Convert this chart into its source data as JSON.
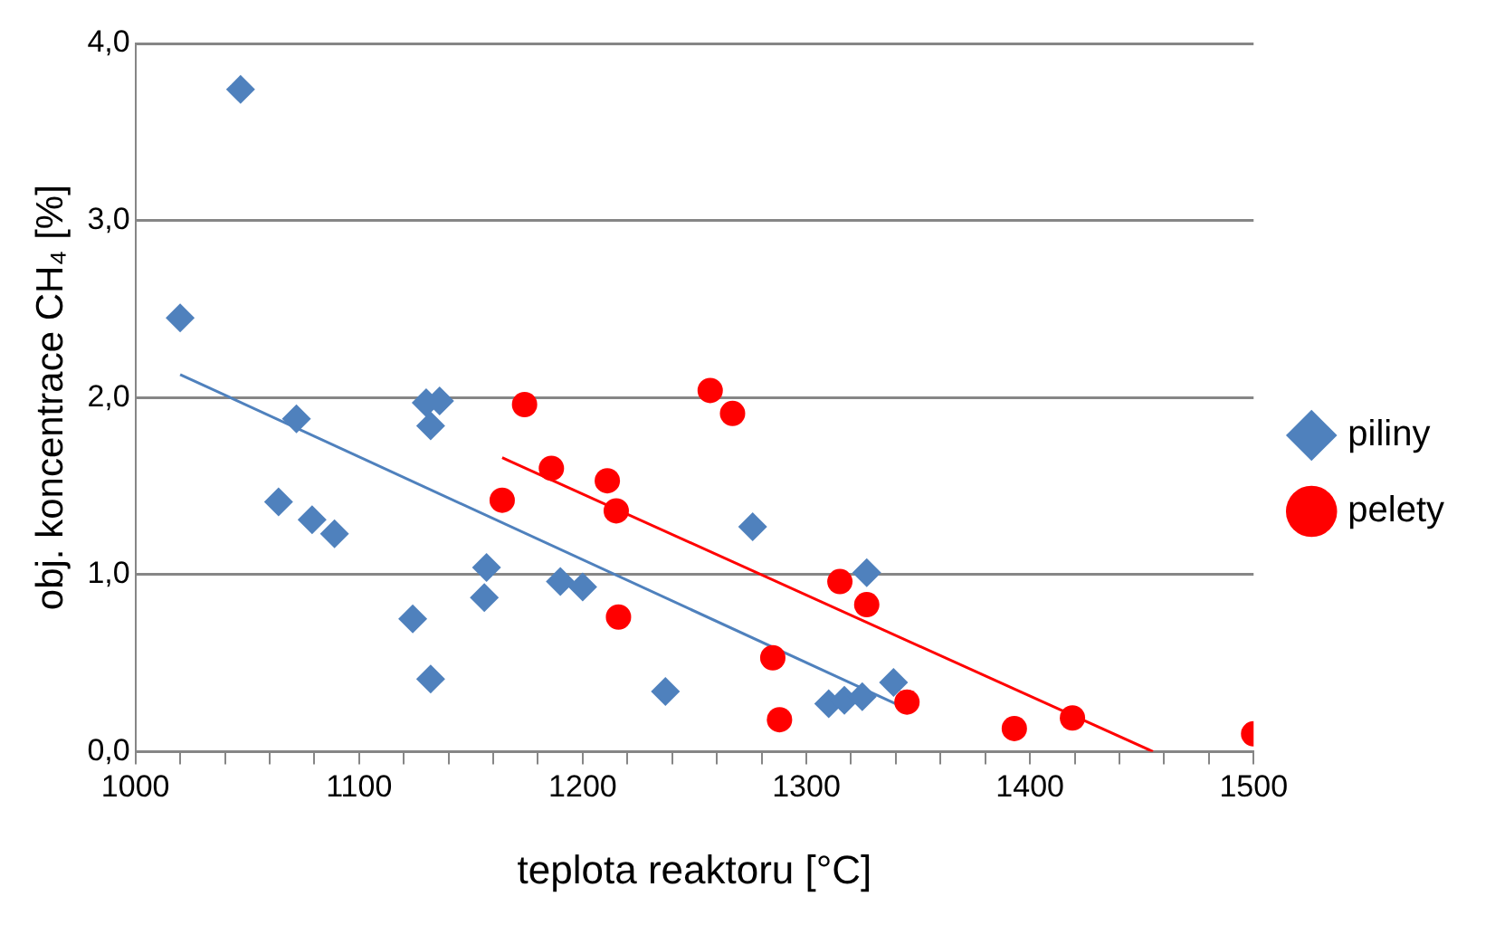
{
  "chart_data": {
    "type": "scatter",
    "xlabel": "teplota reaktoru [°C]",
    "ylabel": "obj. koncentrace CH₄ [%]",
    "xlim": [
      1000,
      1500
    ],
    "xticks": [
      1000,
      {
        "value": 1020,
        "label": null
      },
      {
        "value": 1040,
        "label": null
      },
      {
        "value": 1060,
        "label": null
      },
      {
        "value": 1080,
        "label": null
      },
      1100,
      {
        "value": 1120,
        "label": null
      },
      {
        "value": 1140,
        "label": null
      },
      {
        "value": 1160,
        "label": null
      },
      {
        "value": 1180,
        "label": null
      },
      1200,
      {
        "value": 1220,
        "label": null
      },
      {
        "value": 1240,
        "label": null
      },
      {
        "value": 1260,
        "label": null
      },
      {
        "value": 1280,
        "label": null
      },
      1300,
      {
        "value": 1320,
        "label": null
      },
      {
        "value": 1340,
        "label": null
      },
      {
        "value": 1360,
        "label": null
      },
      {
        "value": 1380,
        "label": null
      },
      1400,
      {
        "value": 1420,
        "label": null
      },
      {
        "value": 1440,
        "label": null
      },
      {
        "value": 1460,
        "label": null
      },
      {
        "value": 1480,
        "label": null
      },
      1500
    ],
    "ylim": [
      0,
      4
    ],
    "yticks": [
      {
        "value": 0,
        "label": "0,0"
      },
      {
        "value": 1,
        "label": "1,0"
      },
      {
        "value": 2,
        "label": "2,0"
      },
      {
        "value": 3,
        "label": "3,0"
      },
      {
        "value": 4,
        "label": "4,0"
      }
    ],
    "grid": "y",
    "legend": "right",
    "series": [
      {
        "name": "piliny",
        "color": "#4f81bd",
        "marker": "diamond",
        "x": [
          1020,
          1047,
          1072,
          1064,
          1079,
          1089,
          1130,
          1136,
          1132,
          1124,
          1132,
          1157,
          1156,
          1190,
          1200,
          1237,
          1276,
          1327,
          1310,
          1317,
          1325,
          1339
        ],
        "values": [
          2.45,
          3.74,
          1.88,
          1.41,
          1.31,
          1.23,
          1.97,
          1.98,
          1.84,
          0.75,
          0.41,
          1.04,
          0.87,
          0.96,
          0.93,
          0.34,
          1.27,
          1.01,
          0.27,
          0.29,
          0.31,
          0.39
        ]
      },
      {
        "name": "pelety",
        "color": "#ff0000",
        "marker": "circle",
        "x": [
          1174,
          1186,
          1164,
          1211,
          1215,
          1216,
          1257,
          1267,
          1315,
          1327,
          1285,
          1288,
          1345,
          1393,
          1419,
          1500
        ],
        "values": [
          1.96,
          1.6,
          1.42,
          1.53,
          1.36,
          0.76,
          2.04,
          1.91,
          0.96,
          0.83,
          0.53,
          0.18,
          0.28,
          0.13,
          0.19,
          0.1
        ]
      },
      {
        "type": "line",
        "color": "#4f81bd",
        "marker": "none",
        "x": [
          1020,
          1340
        ],
        "values": [
          2.13,
          0.27
        ]
      },
      {
        "type": "line",
        "color": "#ff0000",
        "marker": "none",
        "x": [
          1164,
          1455
        ],
        "values": [
          1.66,
          0
        ]
      }
    ]
  }
}
